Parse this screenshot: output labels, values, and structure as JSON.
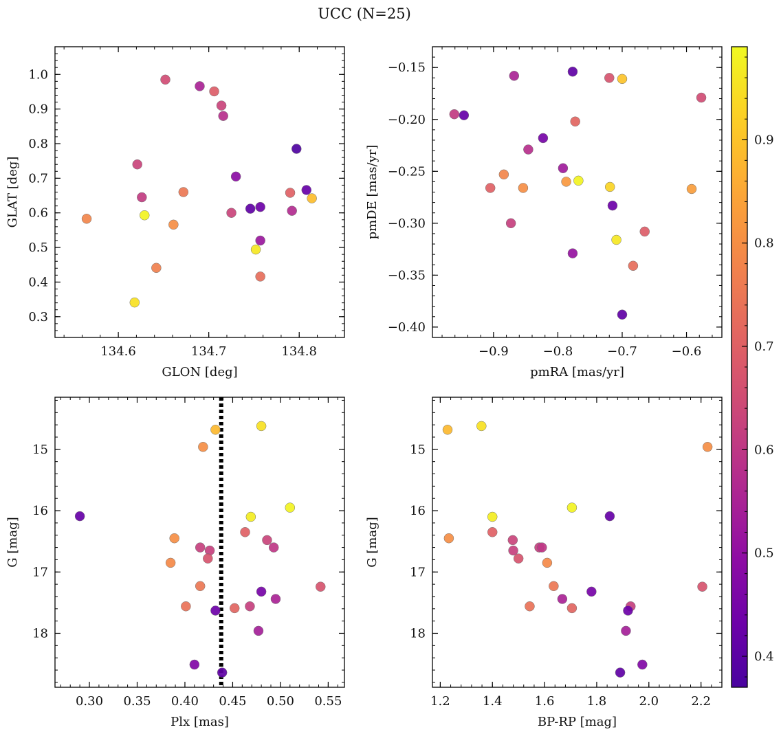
{
  "figure": {
    "title": "UCC (N=25)",
    "colorbar": {
      "colormap": "plasma",
      "range": [
        0.37,
        0.99
      ],
      "ticks": [
        0.4,
        0.5,
        0.6,
        0.7,
        0.8,
        0.9
      ],
      "tick_labels": [
        "0.4",
        "0.5",
        "0.6",
        "0.7",
        "0.8",
        "0.9"
      ]
    }
  },
  "chart_data": [
    {
      "type": "scatter",
      "panel": "top-left",
      "xlabel": "GLON [deg]",
      "ylabel": "GLAT [deg]",
      "xlim": [
        134.53,
        134.85
      ],
      "ylim": [
        0.24,
        1.08
      ],
      "xticks": [
        134.6,
        134.7,
        134.8
      ],
      "xtick_labels": [
        "134.6",
        "134.7",
        "134.8"
      ],
      "yticks": [
        0.3,
        0.4,
        0.5,
        0.6,
        0.7,
        0.8,
        0.9,
        1.0
      ],
      "ytick_labels": [
        "0.3",
        "0.4",
        "0.5",
        "0.6",
        "0.7",
        "0.8",
        "0.9",
        "1.0"
      ],
      "points": [
        {
          "x": 134.652,
          "y": 0.985,
          "c": 0.65
        },
        {
          "x": 134.69,
          "y": 0.966,
          "c": 0.55
        },
        {
          "x": 134.706,
          "y": 0.951,
          "c": 0.69
        },
        {
          "x": 134.714,
          "y": 0.91,
          "c": 0.63
        },
        {
          "x": 134.716,
          "y": 0.88,
          "c": 0.58
        },
        {
          "x": 134.797,
          "y": 0.785,
          "c": 0.38
        },
        {
          "x": 134.621,
          "y": 0.74,
          "c": 0.63
        },
        {
          "x": 134.73,
          "y": 0.705,
          "c": 0.49
        },
        {
          "x": 134.808,
          "y": 0.666,
          "c": 0.42
        },
        {
          "x": 134.672,
          "y": 0.66,
          "c": 0.75
        },
        {
          "x": 134.79,
          "y": 0.658,
          "c": 0.7
        },
        {
          "x": 134.626,
          "y": 0.645,
          "c": 0.61
        },
        {
          "x": 134.814,
          "y": 0.642,
          "c": 0.89
        },
        {
          "x": 134.757,
          "y": 0.617,
          "c": 0.43
        },
        {
          "x": 134.746,
          "y": 0.612,
          "c": 0.41
        },
        {
          "x": 134.792,
          "y": 0.606,
          "c": 0.57
        },
        {
          "x": 134.725,
          "y": 0.6,
          "c": 0.63
        },
        {
          "x": 134.629,
          "y": 0.593,
          "c": 0.98
        },
        {
          "x": 134.565,
          "y": 0.583,
          "c": 0.78
        },
        {
          "x": 134.661,
          "y": 0.566,
          "c": 0.8
        },
        {
          "x": 134.757,
          "y": 0.52,
          "c": 0.52
        },
        {
          "x": 134.752,
          "y": 0.494,
          "c": 0.96
        },
        {
          "x": 134.642,
          "y": 0.441,
          "c": 0.77
        },
        {
          "x": 134.757,
          "y": 0.416,
          "c": 0.73
        },
        {
          "x": 134.618,
          "y": 0.341,
          "c": 0.95
        }
      ]
    },
    {
      "type": "scatter",
      "panel": "top-right",
      "xlabel": "pmRA [mas/yr]",
      "ylabel": "pmDE [mas/yr]",
      "xlim": [
        -0.995,
        -0.545
      ],
      "ylim": [
        -0.41,
        -0.13
      ],
      "xticks": [
        -0.9,
        -0.8,
        -0.7,
        -0.6
      ],
      "xtick_labels": [
        "−0.9",
        "−0.8",
        "−0.7",
        "−0.6"
      ],
      "yticks": [
        -0.4,
        -0.35,
        -0.3,
        -0.25,
        -0.2,
        -0.15
      ],
      "ytick_labels": [
        "−0.40",
        "−0.35",
        "−0.30",
        "−0.25",
        "−0.20",
        "−0.15"
      ],
      "points": [
        {
          "x": -0.777,
          "y": -0.154,
          "c": 0.41
        },
        {
          "x": -0.868,
          "y": -0.158,
          "c": 0.55
        },
        {
          "x": -0.72,
          "y": -0.16,
          "c": 0.67
        },
        {
          "x": -0.7,
          "y": -0.161,
          "c": 0.9
        },
        {
          "x": -0.577,
          "y": -0.179,
          "c": 0.65
        },
        {
          "x": -0.961,
          "y": -0.195,
          "c": 0.61
        },
        {
          "x": -0.946,
          "y": -0.196,
          "c": 0.42
        },
        {
          "x": -0.773,
          "y": -0.202,
          "c": 0.71
        },
        {
          "x": -0.823,
          "y": -0.218,
          "c": 0.45
        },
        {
          "x": -0.846,
          "y": -0.229,
          "c": 0.58
        },
        {
          "x": -0.792,
          "y": -0.247,
          "c": 0.53
        },
        {
          "x": -0.884,
          "y": -0.253,
          "c": 0.78
        },
        {
          "x": -0.768,
          "y": -0.259,
          "c": 0.98
        },
        {
          "x": -0.787,
          "y": -0.26,
          "c": 0.82
        },
        {
          "x": -0.905,
          "y": -0.266,
          "c": 0.7
        },
        {
          "x": -0.719,
          "y": -0.265,
          "c": 0.93
        },
        {
          "x": -0.854,
          "y": -0.266,
          "c": 0.8
        },
        {
          "x": -0.592,
          "y": -0.267,
          "c": 0.83
        },
        {
          "x": -0.715,
          "y": -0.283,
          "c": 0.43
        },
        {
          "x": -0.873,
          "y": -0.3,
          "c": 0.62
        },
        {
          "x": -0.665,
          "y": -0.308,
          "c": 0.69
        },
        {
          "x": -0.709,
          "y": -0.316,
          "c": 0.96
        },
        {
          "x": -0.777,
          "y": -0.329,
          "c": 0.51
        },
        {
          "x": -0.683,
          "y": -0.341,
          "c": 0.73
        },
        {
          "x": -0.7,
          "y": -0.388,
          "c": 0.41
        }
      ]
    },
    {
      "type": "scatter",
      "panel": "bottom-left",
      "xlabel": "Plx [mas]",
      "ylabel": "G [mag]",
      "xlim": [
        0.264,
        0.567
      ],
      "ylim": [
        18.88,
        14.15
      ],
      "y_inverted": true,
      "xticks": [
        0.3,
        0.35,
        0.4,
        0.45,
        0.5,
        0.55
      ],
      "xtick_labels": [
        "0.30",
        "0.35",
        "0.40",
        "0.45",
        "0.50",
        "0.55"
      ],
      "yticks": [
        15,
        16,
        17,
        18
      ],
      "ytick_labels": [
        "15",
        "16",
        "17",
        "18"
      ],
      "vline": {
        "x": 0.438,
        "style": "dotted"
      },
      "points": [
        {
          "x": 0.432,
          "y": 14.68,
          "c": 0.88
        },
        {
          "x": 0.48,
          "y": 14.62,
          "c": 0.95
        },
        {
          "x": 0.419,
          "y": 14.96,
          "c": 0.8
        },
        {
          "x": 0.29,
          "y": 16.09,
          "c": 0.42
        },
        {
          "x": 0.469,
          "y": 16.1,
          "c": 0.97
        },
        {
          "x": 0.51,
          "y": 15.95,
          "c": 0.98
        },
        {
          "x": 0.463,
          "y": 16.35,
          "c": 0.7
        },
        {
          "x": 0.389,
          "y": 16.45,
          "c": 0.8
        },
        {
          "x": 0.486,
          "y": 16.48,
          "c": 0.63
        },
        {
          "x": 0.416,
          "y": 16.6,
          "c": 0.62
        },
        {
          "x": 0.493,
          "y": 16.6,
          "c": 0.6
        },
        {
          "x": 0.426,
          "y": 16.65,
          "c": 0.62
        },
        {
          "x": 0.424,
          "y": 16.78,
          "c": 0.67
        },
        {
          "x": 0.385,
          "y": 16.85,
          "c": 0.79
        },
        {
          "x": 0.416,
          "y": 17.23,
          "c": 0.75
        },
        {
          "x": 0.542,
          "y": 17.24,
          "c": 0.67
        },
        {
          "x": 0.48,
          "y": 17.32,
          "c": 0.45
        },
        {
          "x": 0.495,
          "y": 17.44,
          "c": 0.55
        },
        {
          "x": 0.401,
          "y": 17.56,
          "c": 0.74
        },
        {
          "x": 0.468,
          "y": 17.56,
          "c": 0.62
        },
        {
          "x": 0.452,
          "y": 17.59,
          "c": 0.71
        },
        {
          "x": 0.432,
          "y": 17.63,
          "c": 0.43
        },
        {
          "x": 0.477,
          "y": 17.96,
          "c": 0.54
        },
        {
          "x": 0.41,
          "y": 18.51,
          "c": 0.47
        },
        {
          "x": 0.439,
          "y": 18.64,
          "c": 0.41
        }
      ]
    },
    {
      "type": "scatter",
      "panel": "bottom-right",
      "xlabel": "BP-RP [mag]",
      "ylabel": "G [mag]",
      "xlim": [
        1.17,
        2.28
      ],
      "ylim": [
        18.88,
        14.15
      ],
      "y_inverted": true,
      "xticks": [
        1.2,
        1.4,
        1.6,
        1.8,
        2.0,
        2.2
      ],
      "xtick_labels": [
        "1.2",
        "1.4",
        "1.6",
        "1.8",
        "2.0",
        "2.2"
      ],
      "yticks": [
        15,
        16,
        17,
        18
      ],
      "ytick_labels": [
        "15",
        "16",
        "17",
        "18"
      ],
      "points": [
        {
          "x": 1.228,
          "y": 14.68,
          "c": 0.88
        },
        {
          "x": 1.358,
          "y": 14.62,
          "c": 0.95
        },
        {
          "x": 2.225,
          "y": 14.96,
          "c": 0.8
        },
        {
          "x": 1.4,
          "y": 16.1,
          "c": 0.97
        },
        {
          "x": 1.705,
          "y": 15.95,
          "c": 0.98
        },
        {
          "x": 1.85,
          "y": 16.09,
          "c": 0.42
        },
        {
          "x": 1.233,
          "y": 16.45,
          "c": 0.8
        },
        {
          "x": 1.4,
          "y": 16.35,
          "c": 0.7
        },
        {
          "x": 1.478,
          "y": 16.48,
          "c": 0.63
        },
        {
          "x": 1.48,
          "y": 16.65,
          "c": 0.62
        },
        {
          "x": 1.5,
          "y": 16.78,
          "c": 0.67
        },
        {
          "x": 1.58,
          "y": 16.6,
          "c": 0.62
        },
        {
          "x": 1.59,
          "y": 16.6,
          "c": 0.6
        },
        {
          "x": 1.61,
          "y": 16.85,
          "c": 0.79
        },
        {
          "x": 1.635,
          "y": 17.23,
          "c": 0.75
        },
        {
          "x": 2.205,
          "y": 17.24,
          "c": 0.67
        },
        {
          "x": 1.78,
          "y": 17.32,
          "c": 0.45
        },
        {
          "x": 1.668,
          "y": 17.44,
          "c": 0.55
        },
        {
          "x": 1.543,
          "y": 17.56,
          "c": 0.74
        },
        {
          "x": 1.705,
          "y": 17.59,
          "c": 0.71
        },
        {
          "x": 1.93,
          "y": 17.56,
          "c": 0.62
        },
        {
          "x": 1.92,
          "y": 17.63,
          "c": 0.43
        },
        {
          "x": 1.912,
          "y": 17.96,
          "c": 0.54
        },
        {
          "x": 1.975,
          "y": 18.51,
          "c": 0.47
        },
        {
          "x": 1.89,
          "y": 18.64,
          "c": 0.41
        }
      ]
    }
  ]
}
